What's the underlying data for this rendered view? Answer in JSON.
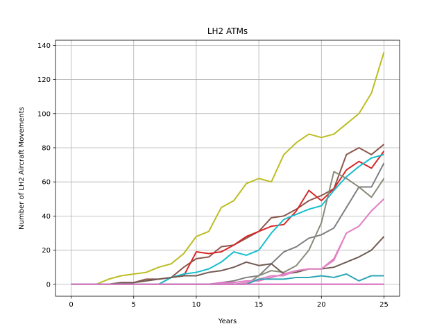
{
  "chart_data": {
    "type": "line",
    "title": "LH2 ATMs",
    "xlabel": "Years",
    "ylabel": "Number of LH2 Aircraft Movements",
    "xlim": [
      -1.25,
      26.25
    ],
    "ylim": [
      -7,
      143
    ],
    "xticks": [
      0,
      5,
      10,
      15,
      20,
      25
    ],
    "yticks": [
      0,
      20,
      40,
      60,
      80,
      100,
      120,
      140
    ],
    "grid": true,
    "x": [
      0,
      1,
      2,
      3,
      4,
      5,
      6,
      7,
      8,
      9,
      10,
      11,
      12,
      13,
      14,
      15,
      16,
      17,
      18,
      19,
      20,
      21,
      22,
      23,
      24,
      25
    ],
    "series": [
      {
        "color": "#9467bd",
        "values": [
          0,
          0,
          0,
          0,
          0,
          0,
          0,
          0,
          0,
          0,
          0,
          0,
          0,
          0,
          0,
          0,
          0,
          0,
          0,
          0,
          0,
          0,
          0,
          0,
          0,
          0
        ]
      },
      {
        "color": "#bcbd22",
        "values": [
          0,
          0,
          0,
          3,
          5,
          6,
          7,
          10,
          12,
          18,
          28,
          31,
          45,
          49,
          59,
          62,
          60,
          76,
          83,
          88,
          86,
          88,
          94,
          100,
          112,
          136
        ]
      },
      {
        "color": "#8c564b",
        "values": [
          0,
          0,
          0,
          0,
          1,
          1,
          3,
          3,
          4,
          10,
          15,
          16,
          22,
          23,
          27,
          31,
          39,
          40,
          44,
          49,
          52,
          56,
          76,
          80,
          76,
          82
        ]
      },
      {
        "color": "#d62728",
        "values": [
          0,
          0,
          0,
          0,
          0,
          0,
          0,
          0,
          4,
          5,
          19,
          18,
          19,
          23,
          28,
          31,
          34,
          35,
          43,
          55,
          49,
          56,
          67,
          72,
          68,
          78
        ]
      },
      {
        "color": "#17becf",
        "values": [
          0,
          0,
          0,
          0,
          0,
          0,
          0,
          0,
          4,
          6,
          7,
          9,
          13,
          19,
          17,
          20,
          30,
          38,
          41,
          44,
          46,
          55,
          63,
          69,
          74,
          76
        ]
      },
      {
        "color": "#7f7f7f",
        "values": [
          0,
          0,
          0,
          0,
          0,
          0,
          0,
          0,
          0,
          0,
          0,
          0,
          1,
          2,
          4,
          5,
          12,
          19,
          22,
          27,
          29,
          33,
          45,
          57,
          57,
          71
        ]
      },
      {
        "color": "#8a8a7a",
        "values": [
          0,
          0,
          0,
          0,
          0,
          0,
          0,
          0,
          0,
          0,
          0,
          0,
          0,
          0,
          0,
          5,
          8,
          7,
          11,
          20,
          36,
          66,
          62,
          57,
          51,
          62
        ]
      },
      {
        "color": "#6f5a52",
        "values": [
          0,
          0,
          0,
          0,
          1,
          1,
          2,
          3,
          4,
          5,
          5,
          7,
          8,
          10,
          13,
          11,
          12,
          6,
          7,
          9,
          9,
          10,
          13,
          16,
          20,
          28
        ]
      },
      {
        "color": "#e377c2",
        "values": [
          0,
          0,
          0,
          0,
          0,
          0,
          0,
          0,
          0,
          0,
          0,
          0,
          1,
          1,
          2,
          2,
          4,
          6,
          8,
          9,
          9,
          15,
          30,
          34,
          43,
          50
        ]
      },
      {
        "color": "#e086c3",
        "values": [
          0,
          0,
          0,
          0,
          0,
          0,
          0,
          0,
          0,
          0,
          0,
          0,
          0,
          0,
          1,
          3,
          5,
          5,
          8,
          9,
          9,
          14,
          30,
          34,
          43,
          50
        ]
      },
      {
        "color": "#2ca5b5",
        "values": [
          0,
          0,
          0,
          0,
          0,
          0,
          0,
          0,
          0,
          0,
          0,
          0,
          0,
          0,
          0,
          3,
          3,
          3,
          4,
          4,
          5,
          4,
          6,
          2,
          5,
          5
        ]
      },
      {
        "color": "#e377c2",
        "values": [
          0,
          0,
          0,
          0,
          0,
          0,
          0,
          0,
          0,
          0,
          0,
          0,
          0,
          0,
          0,
          0,
          0,
          0,
          0,
          0,
          0,
          0,
          0,
          0,
          0,
          0
        ]
      }
    ]
  }
}
